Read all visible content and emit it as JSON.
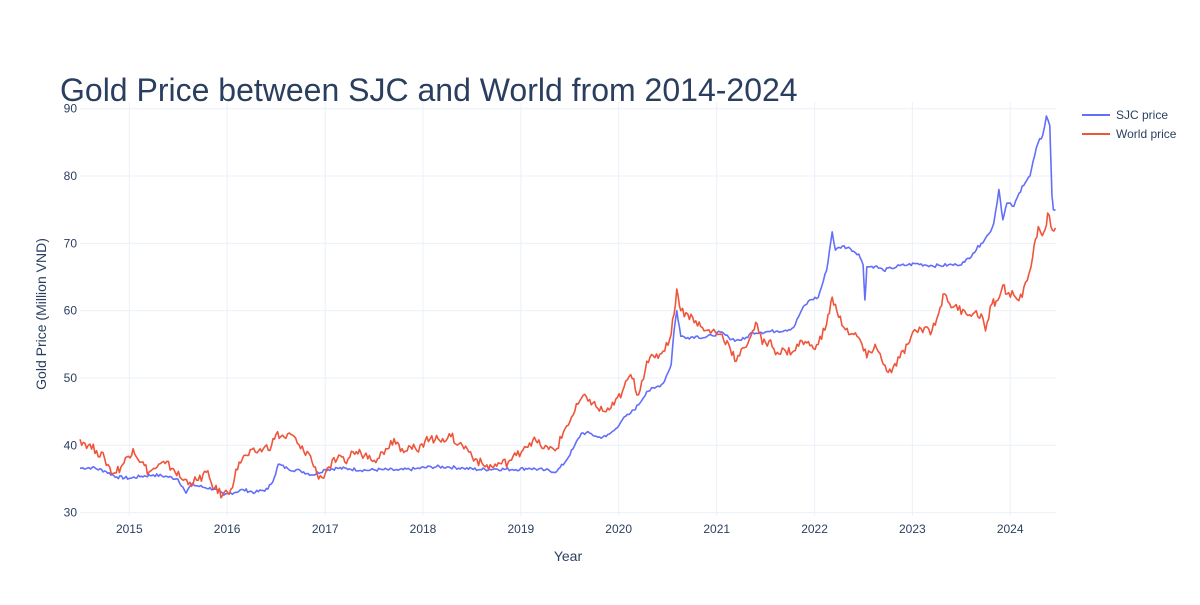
{
  "colors": {
    "sjc": "#636efa",
    "world": "#ef553b",
    "title": "#2a3f5f",
    "tick": "#2a3f5f",
    "grid": "#ebf0f8"
  },
  "chart_data": {
    "type": "line",
    "title": "Gold Price between SJC and World from 2014-2024",
    "xlabel": "Year",
    "ylabel": "Gold Price (Million VND)",
    "xlim": [
      "2014-07-01",
      "2024-06-20"
    ],
    "ylim": [
      29.5,
      91
    ],
    "x_ticks": [
      "2015",
      "2016",
      "2017",
      "2018",
      "2019",
      "2020",
      "2021",
      "2022",
      "2023",
      "2024"
    ],
    "y_ticks": [
      30,
      40,
      50,
      60,
      70,
      80,
      90
    ],
    "grid": true,
    "legend_position": "top-right",
    "series": [
      {
        "name": "SJC price",
        "color": "#636efa",
        "points": [
          [
            "2014-07-01",
            36.6
          ],
          [
            "2014-08-15",
            36.7
          ],
          [
            "2014-10-01",
            36.2
          ],
          [
            "2014-11-15",
            35.3
          ],
          [
            "2015-01-01",
            35.1
          ],
          [
            "2015-02-15",
            35.4
          ],
          [
            "2015-04-01",
            35.6
          ],
          [
            "2015-05-15",
            35.4
          ],
          [
            "2015-07-01",
            35.0
          ],
          [
            "2015-07-20",
            33.8
          ],
          [
            "2015-08-01",
            32.9
          ],
          [
            "2015-08-20",
            34.2
          ],
          [
            "2015-10-01",
            33.8
          ],
          [
            "2015-11-15",
            33.5
          ],
          [
            "2015-12-20",
            32.6
          ],
          [
            "2016-01-15",
            32.9
          ],
          [
            "2016-03-01",
            33.4
          ],
          [
            "2016-04-15",
            33.0
          ],
          [
            "2016-06-01",
            33.5
          ],
          [
            "2016-06-25",
            35.2
          ],
          [
            "2016-07-10",
            37.2
          ],
          [
            "2016-08-15",
            36.5
          ],
          [
            "2016-10-01",
            36.2
          ],
          [
            "2016-11-15",
            35.6
          ],
          [
            "2017-01-01",
            36.4
          ],
          [
            "2017-02-15",
            36.6
          ],
          [
            "2017-04-01",
            36.5
          ],
          [
            "2017-06-01",
            36.3
          ],
          [
            "2017-08-01",
            36.4
          ],
          [
            "2017-10-01",
            36.3
          ],
          [
            "2017-12-01",
            36.5
          ],
          [
            "2018-02-01",
            36.8
          ],
          [
            "2018-04-01",
            36.8
          ],
          [
            "2018-06-01",
            36.6
          ],
          [
            "2018-08-01",
            36.4
          ],
          [
            "2018-10-01",
            36.5
          ],
          [
            "2018-12-01",
            36.4
          ],
          [
            "2019-02-01",
            36.6
          ],
          [
            "2019-04-01",
            36.3
          ],
          [
            "2019-05-15",
            36.1
          ],
          [
            "2019-06-15",
            37.5
          ],
          [
            "2019-07-15",
            39.5
          ],
          [
            "2019-08-15",
            41.8
          ],
          [
            "2019-09-15",
            41.8
          ],
          [
            "2019-10-15",
            41.2
          ],
          [
            "2019-11-15",
            41.3
          ],
          [
            "2019-12-15",
            42.2
          ],
          [
            "2020-01-15",
            43.8
          ],
          [
            "2020-02-15",
            44.8
          ],
          [
            "2020-03-15",
            46.0
          ],
          [
            "2020-04-15",
            48.0
          ],
          [
            "2020-05-15",
            48.5
          ],
          [
            "2020-06-15",
            49.2
          ],
          [
            "2020-07-15",
            52.0
          ],
          [
            "2020-07-25",
            56.8
          ],
          [
            "2020-08-05",
            60.0
          ],
          [
            "2020-08-20",
            56.2
          ],
          [
            "2020-09-15",
            56.0
          ],
          [
            "2020-10-15",
            56.2
          ],
          [
            "2020-11-15",
            56.0
          ],
          [
            "2020-12-15",
            56.3
          ],
          [
            "2021-01-15",
            56.8
          ],
          [
            "2021-02-15",
            56.0
          ],
          [
            "2021-03-15",
            55.6
          ],
          [
            "2021-04-15",
            55.8
          ],
          [
            "2021-05-15",
            56.8
          ],
          [
            "2021-06-15",
            56.8
          ],
          [
            "2021-07-15",
            56.9
          ],
          [
            "2021-08-15",
            57.0
          ],
          [
            "2021-09-15",
            57.1
          ],
          [
            "2021-10-15",
            57.5
          ],
          [
            "2021-11-15",
            60.2
          ],
          [
            "2021-12-15",
            61.6
          ],
          [
            "2022-01-15",
            62.0
          ],
          [
            "2022-02-15",
            66.0
          ],
          [
            "2022-03-08",
            71.7
          ],
          [
            "2022-03-20",
            69.0
          ],
          [
            "2022-04-15",
            69.6
          ],
          [
            "2022-05-15",
            69.2
          ],
          [
            "2022-06-15",
            68.4
          ],
          [
            "2022-07-01",
            66.8
          ],
          [
            "2022-07-08",
            61.6
          ],
          [
            "2022-07-15",
            66.5
          ],
          [
            "2022-08-15",
            66.6
          ],
          [
            "2022-09-15",
            66.0
          ],
          [
            "2022-10-15",
            66.3
          ],
          [
            "2022-11-15",
            66.7
          ],
          [
            "2022-12-15",
            66.8
          ],
          [
            "2023-01-15",
            67.0
          ],
          [
            "2023-02-15",
            66.8
          ],
          [
            "2023-03-15",
            66.7
          ],
          [
            "2023-04-15",
            66.7
          ],
          [
            "2023-05-15",
            66.8
          ],
          [
            "2023-06-15",
            66.8
          ],
          [
            "2023-07-15",
            67.2
          ],
          [
            "2023-08-15",
            68.5
          ],
          [
            "2023-09-15",
            70.0
          ],
          [
            "2023-10-15",
            71.5
          ],
          [
            "2023-11-01",
            73.0
          ],
          [
            "2023-11-20",
            78.0
          ],
          [
            "2023-12-05",
            73.5
          ],
          [
            "2023-12-20",
            76.0
          ],
          [
            "2024-01-15",
            75.5
          ],
          [
            "2024-02-15",
            78.5
          ],
          [
            "2024-03-15",
            80.0
          ],
          [
            "2024-04-01",
            83.0
          ],
          [
            "2024-04-15",
            85.0
          ],
          [
            "2024-05-01",
            86.0
          ],
          [
            "2024-05-15",
            88.9
          ],
          [
            "2024-05-28",
            87.5
          ],
          [
            "2024-06-05",
            77.0
          ],
          [
            "2024-06-10",
            75.0
          ],
          [
            "2024-06-18",
            75.0
          ]
        ]
      },
      {
        "name": "World price",
        "color": "#ef553b",
        "points": [
          [
            "2014-07-01",
            40.9
          ],
          [
            "2014-08-01",
            40.0
          ],
          [
            "2014-09-01",
            39.2
          ],
          [
            "2014-10-01",
            38.0
          ],
          [
            "2014-11-01",
            35.8
          ],
          [
            "2014-12-01",
            36.8
          ],
          [
            "2015-01-15",
            39.5
          ],
          [
            "2015-02-15",
            37.5
          ],
          [
            "2015-03-15",
            36.0
          ],
          [
            "2015-04-15",
            36.8
          ],
          [
            "2015-05-15",
            37.3
          ],
          [
            "2015-06-15",
            36.5
          ],
          [
            "2015-07-15",
            35.0
          ],
          [
            "2015-08-15",
            34.5
          ],
          [
            "2015-09-15",
            34.8
          ],
          [
            "2015-10-15",
            36.0
          ],
          [
            "2015-11-15",
            33.6
          ],
          [
            "2015-12-15",
            32.6
          ],
          [
            "2016-01-15",
            33.5
          ],
          [
            "2016-02-15",
            37.5
          ],
          [
            "2016-03-15",
            38.5
          ],
          [
            "2016-04-15",
            39.0
          ],
          [
            "2016-05-15",
            39.5
          ],
          [
            "2016-06-15",
            40.0
          ],
          [
            "2016-07-01",
            41.6
          ],
          [
            "2016-08-01",
            41.2
          ],
          [
            "2016-09-01",
            41.5
          ],
          [
            "2016-10-01",
            39.5
          ],
          [
            "2016-11-01",
            38.8
          ],
          [
            "2016-12-01",
            35.8
          ],
          [
            "2016-12-20",
            35.2
          ],
          [
            "2017-01-15",
            36.8
          ],
          [
            "2017-02-15",
            38.0
          ],
          [
            "2017-03-15",
            37.5
          ],
          [
            "2017-04-15",
            39.0
          ],
          [
            "2017-05-15",
            38.8
          ],
          [
            "2017-06-15",
            38.5
          ],
          [
            "2017-07-15",
            38.0
          ],
          [
            "2017-08-15",
            39.5
          ],
          [
            "2017-09-15",
            41.0
          ],
          [
            "2017-10-15",
            39.5
          ],
          [
            "2017-11-15",
            39.8
          ],
          [
            "2017-12-15",
            39.0
          ],
          [
            "2018-01-15",
            41.3
          ],
          [
            "2018-02-15",
            40.8
          ],
          [
            "2018-03-15",
            41.0
          ],
          [
            "2018-04-15",
            41.3
          ],
          [
            "2018-05-15",
            40.2
          ],
          [
            "2018-06-15",
            39.5
          ],
          [
            "2018-07-15",
            38.0
          ],
          [
            "2018-08-15",
            37.0
          ],
          [
            "2018-09-15",
            36.8
          ],
          [
            "2018-10-15",
            37.3
          ],
          [
            "2018-11-15",
            37.5
          ],
          [
            "2018-12-15",
            38.5
          ],
          [
            "2019-01-15",
            39.8
          ],
          [
            "2019-02-15",
            40.8
          ],
          [
            "2019-03-15",
            40.0
          ],
          [
            "2019-04-15",
            39.4
          ],
          [
            "2019-05-15",
            39.5
          ],
          [
            "2019-06-15",
            42.5
          ],
          [
            "2019-07-15",
            44.5
          ],
          [
            "2019-08-15",
            47.0
          ],
          [
            "2019-09-15",
            46.8
          ],
          [
            "2019-10-15",
            45.5
          ],
          [
            "2019-11-15",
            45.0
          ],
          [
            "2019-12-15",
            46.0
          ],
          [
            "2020-01-15",
            48.0
          ],
          [
            "2020-02-15",
            50.5
          ],
          [
            "2020-03-15",
            47.5
          ],
          [
            "2020-04-15",
            52.5
          ],
          [
            "2020-05-15",
            53.0
          ],
          [
            "2020-06-15",
            54.0
          ],
          [
            "2020-07-15",
            56.5
          ],
          [
            "2020-08-05",
            63.2
          ],
          [
            "2020-08-20",
            60.0
          ],
          [
            "2020-09-15",
            59.5
          ],
          [
            "2020-10-15",
            58.5
          ],
          [
            "2020-11-15",
            57.0
          ],
          [
            "2020-12-15",
            57.0
          ],
          [
            "2021-01-15",
            56.5
          ],
          [
            "2021-02-15",
            55.0
          ],
          [
            "2021-03-15",
            52.5
          ],
          [
            "2021-04-15",
            54.5
          ],
          [
            "2021-05-15",
            57.0
          ],
          [
            "2021-06-01",
            58.0
          ],
          [
            "2021-06-20",
            55.0
          ],
          [
            "2021-07-15",
            55.5
          ],
          [
            "2021-08-15",
            53.8
          ],
          [
            "2021-09-15",
            54.0
          ],
          [
            "2021-10-15",
            54.0
          ],
          [
            "2021-11-15",
            55.5
          ],
          [
            "2021-12-15",
            54.8
          ],
          [
            "2022-01-15",
            55.0
          ],
          [
            "2022-02-15",
            58.0
          ],
          [
            "2022-03-08",
            62.0
          ],
          [
            "2022-04-01",
            59.0
          ],
          [
            "2022-05-15",
            56.5
          ],
          [
            "2022-06-15",
            56.0
          ],
          [
            "2022-07-15",
            53.0
          ],
          [
            "2022-08-15",
            55.0
          ],
          [
            "2022-09-15",
            52.0
          ],
          [
            "2022-10-15",
            50.8
          ],
          [
            "2022-11-15",
            53.0
          ],
          [
            "2022-12-15",
            55.0
          ],
          [
            "2023-01-15",
            57.0
          ],
          [
            "2023-02-15",
            57.5
          ],
          [
            "2023-03-15",
            57.0
          ],
          [
            "2023-04-15",
            60.5
          ],
          [
            "2023-05-01",
            62.5
          ],
          [
            "2023-06-01",
            60.5
          ],
          [
            "2023-07-15",
            60.0
          ],
          [
            "2023-08-15",
            59.5
          ],
          [
            "2023-09-15",
            59.5
          ],
          [
            "2023-10-01",
            57.0
          ],
          [
            "2023-10-25",
            61.0
          ],
          [
            "2023-11-15",
            61.5
          ],
          [
            "2023-12-05",
            63.8
          ],
          [
            "2023-12-20",
            62.5
          ],
          [
            "2024-01-15",
            62.3
          ],
          [
            "2024-02-15",
            62.0
          ],
          [
            "2024-03-05",
            64.5
          ],
          [
            "2024-03-25",
            68.0
          ],
          [
            "2024-04-15",
            72.5
          ],
          [
            "2024-04-25",
            71.5
          ],
          [
            "2024-05-10",
            72.0
          ],
          [
            "2024-05-20",
            74.5
          ],
          [
            "2024-06-01",
            72.5
          ],
          [
            "2024-06-18",
            72.3
          ]
        ]
      }
    ]
  }
}
